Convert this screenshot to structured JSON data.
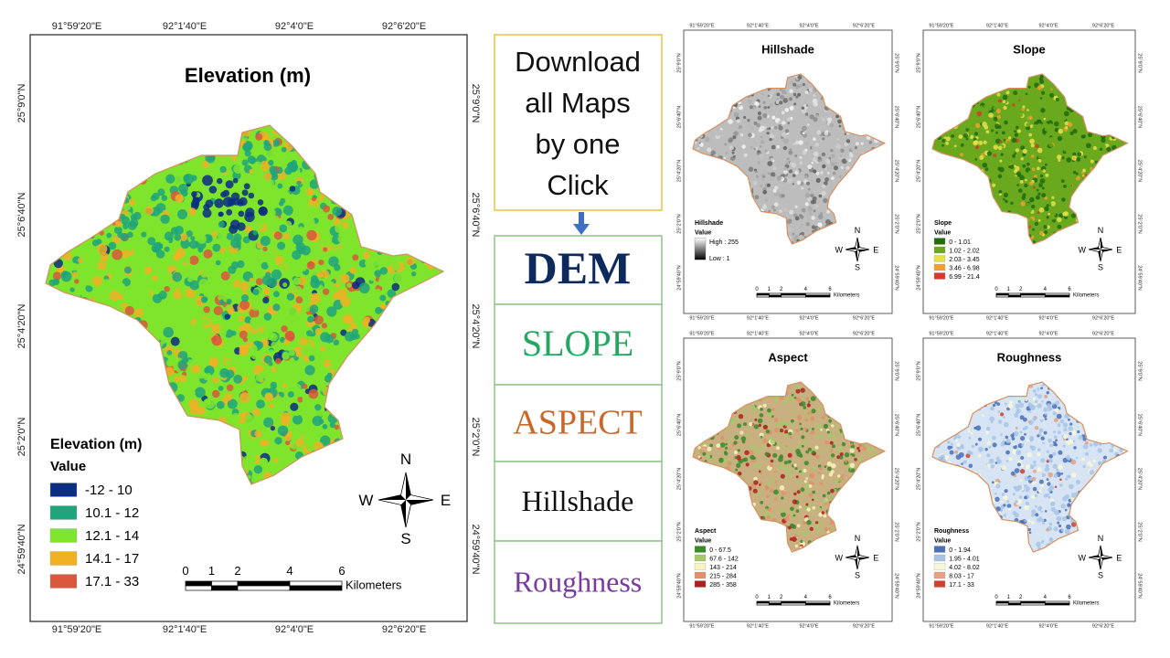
{
  "coordinates": {
    "lon": [
      "91°59'20\"E",
      "92°1'40\"E",
      "92°4'0\"E",
      "92°6'20\"E"
    ],
    "lat": [
      "25°9'0\"N",
      "25°6'40\"N",
      "25°4'20\"N",
      "25°2'0\"N",
      "24°59'40\"N"
    ]
  },
  "scale_bar": {
    "ticks": [
      0,
      1,
      2,
      4,
      6
    ],
    "unit": "Kilometers"
  },
  "north_arrow": {
    "n": "N",
    "s": "S",
    "w": "W",
    "e": "E"
  },
  "main_map": {
    "title": "Elevation (m)",
    "legend": {
      "title": "Elevation (m)",
      "subtitle": "Value",
      "items": [
        {
          "label": "-12 - 10",
          "color": "#0b2d84"
        },
        {
          "label": "10.1 - 12",
          "color": "#1fa57c"
        },
        {
          "label": "12.1 - 14",
          "color": "#7ee52c"
        },
        {
          "label": "14.1 - 17",
          "color": "#f0b225"
        },
        {
          "label": "17.1 - 33",
          "color": "#d9573c"
        }
      ]
    }
  },
  "download_panel": {
    "heading": [
      "Download",
      "all Maps",
      "by one",
      "Click"
    ],
    "buttons": [
      {
        "label": "DEM",
        "color": "#0d2a5c"
      },
      {
        "label": "SLOPE",
        "color": "#22a860"
      },
      {
        "label": "ASPECT",
        "color": "#c8682a"
      },
      {
        "label": "Hillshade",
        "color": "#111111"
      },
      {
        "label": "Roughness",
        "color": "#7a3aa0"
      }
    ]
  },
  "small_maps": [
    {
      "title": "Hillshade",
      "legend": {
        "title": "Hillshade",
        "subtitle": "Value",
        "items": [
          {
            "label": "High : 255",
            "color": "#ffffff"
          },
          {
            "label": "Low : 1",
            "color": "#000000"
          }
        ]
      }
    },
    {
      "title": "Slope",
      "legend": {
        "title": "Slope",
        "subtitle": "Value",
        "items": [
          {
            "label": "0 - 1.01",
            "color": "#1e6b10"
          },
          {
            "label": "1.02 - 2.02",
            "color": "#6aa81e"
          },
          {
            "label": "2.03 - 3.45",
            "color": "#e8e04a"
          },
          {
            "label": "3.46 - 6.98",
            "color": "#f0a030"
          },
          {
            "label": "6.99 - 21.4",
            "color": "#d8392a"
          }
        ]
      }
    },
    {
      "title": "Aspect",
      "legend": {
        "title": "Aspect",
        "subtitle": "Value",
        "items": [
          {
            "label": "0 - 67.5",
            "color": "#3a8a2a"
          },
          {
            "label": "67.6 - 142",
            "color": "#a6c86a"
          },
          {
            "label": "143 - 214",
            "color": "#f8f4c0"
          },
          {
            "label": "215 - 284",
            "color": "#e0906a"
          },
          {
            "label": "285 - 358",
            "color": "#b02020"
          }
        ]
      }
    },
    {
      "title": "Roughness",
      "legend": {
        "title": "Roughness",
        "subtitle": "Value",
        "items": [
          {
            "label": "0 - 1.94",
            "color": "#4a70b8"
          },
          {
            "label": "1.95 - 4.01",
            "color": "#a8c4e8"
          },
          {
            "label": "4.02 - 8.02",
            "color": "#f8f8d8"
          },
          {
            "label": "8.03 - 17",
            "color": "#e8a080"
          },
          {
            "label": "17.1 - 33",
            "color": "#d04030"
          }
        ]
      }
    }
  ]
}
